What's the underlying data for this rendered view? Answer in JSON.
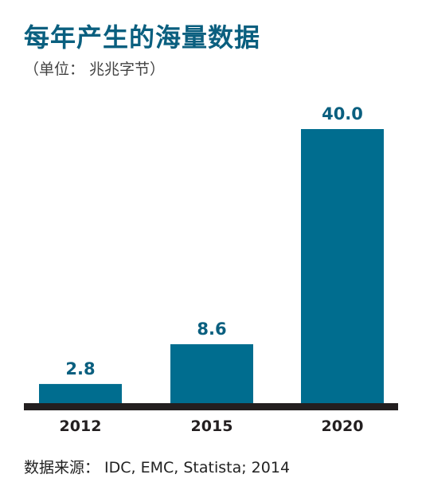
{
  "chart_data": {
    "type": "bar",
    "title": "每年产生的海量数据",
    "subtitle": "（单位： 兆兆字节）",
    "categories": [
      "2012",
      "2015",
      "2020"
    ],
    "values": [
      2.8,
      8.6,
      40.0
    ],
    "value_labels": [
      "2.8",
      "8.6",
      "40.0"
    ],
    "ylim": [
      0,
      40
    ],
    "xlabel": "",
    "ylabel": "",
    "grid": false,
    "legend": "none",
    "bar_color": "#006d8f",
    "label_color": "#0a5f7f",
    "baseline_color": "#231f20"
  },
  "source": "数据来源： IDC, EMC, Statista; 2014"
}
